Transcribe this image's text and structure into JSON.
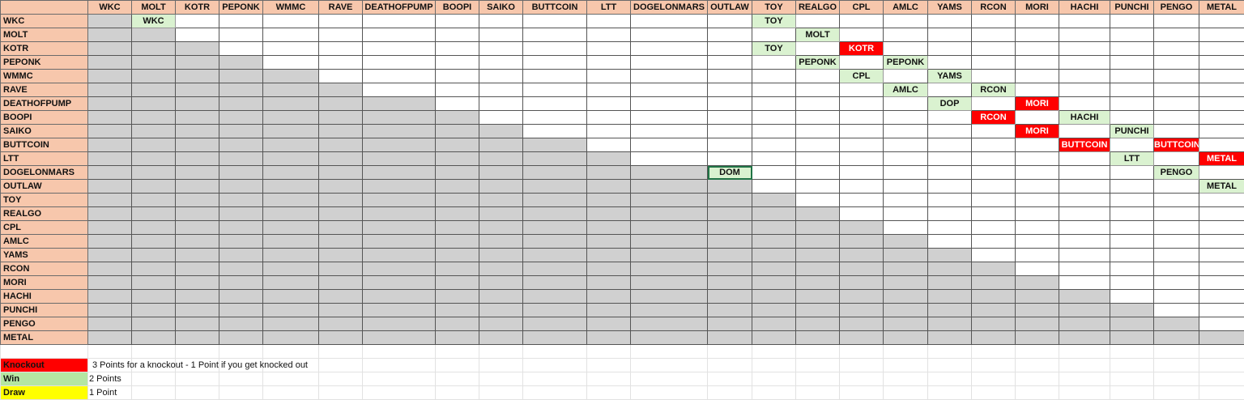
{
  "teams": [
    "WKC",
    "MOLT",
    "KOTR",
    "PEPONK",
    "WMMC",
    "RAVE",
    "DEATHOFPUMP",
    "BOOPI",
    "SAIKO",
    "BUTTCOIN",
    "LTT",
    "DOGELONMARS",
    "OUTLAW",
    "TOY",
    "REALGO",
    "CPL",
    "AMLC",
    "YAMS",
    "RCON",
    "MORI",
    "HACHI",
    "PUNCHI",
    "PENGO",
    "METAL"
  ],
  "results": [
    {
      "row": "WKC",
      "col": "MOLT",
      "text": "WKC",
      "type": "win"
    },
    {
      "row": "WKC",
      "col": "TOY",
      "text": "TOY",
      "type": "win"
    },
    {
      "row": "MOLT",
      "col": "REALGO",
      "text": "MOLT",
      "type": "win"
    },
    {
      "row": "KOTR",
      "col": "TOY",
      "text": "TOY",
      "type": "win"
    },
    {
      "row": "KOTR",
      "col": "CPL",
      "text": "KOTR",
      "type": "knockout"
    },
    {
      "row": "PEPONK",
      "col": "REALGO",
      "text": "PEPONK",
      "type": "win"
    },
    {
      "row": "PEPONK",
      "col": "AMLC",
      "text": "PEPONK",
      "type": "win"
    },
    {
      "row": "WMMC",
      "col": "CPL",
      "text": "CPL",
      "type": "win"
    },
    {
      "row": "WMMC",
      "col": "YAMS",
      "text": "YAMS",
      "type": "win"
    },
    {
      "row": "RAVE",
      "col": "AMLC",
      "text": "AMLC",
      "type": "win"
    },
    {
      "row": "RAVE",
      "col": "RCON",
      "text": "RCON",
      "type": "win"
    },
    {
      "row": "DEATHOFPUMP",
      "col": "YAMS",
      "text": "DOP",
      "type": "win"
    },
    {
      "row": "DEATHOFPUMP",
      "col": "MORI",
      "text": "MORI",
      "type": "knockout"
    },
    {
      "row": "BOOPI",
      "col": "RCON",
      "text": "RCON",
      "type": "knockout"
    },
    {
      "row": "BOOPI",
      "col": "HACHI",
      "text": "HACHI",
      "type": "win"
    },
    {
      "row": "SAIKO",
      "col": "MORI",
      "text": "MORI",
      "type": "knockout"
    },
    {
      "row": "SAIKO",
      "col": "PUNCHI",
      "text": "PUNCHI",
      "type": "win"
    },
    {
      "row": "BUTTCOIN",
      "col": "HACHI",
      "text": "BUTTCOIN",
      "type": "knockout"
    },
    {
      "row": "BUTTCOIN",
      "col": "PENGO",
      "text": "BUTTCOIN",
      "type": "knockout"
    },
    {
      "row": "LTT",
      "col": "PUNCHI",
      "text": "LTT",
      "type": "win"
    },
    {
      "row": "LTT",
      "col": "METAL",
      "text": "METAL",
      "type": "knockout"
    },
    {
      "row": "DOGELONMARS",
      "col": "OUTLAW",
      "text": "DOM",
      "type": "win",
      "selected": true
    },
    {
      "row": "DOGELONMARS",
      "col": "PENGO",
      "text": "PENGO",
      "type": "win"
    },
    {
      "row": "OUTLAW",
      "col": "METAL",
      "text": "METAL",
      "type": "win"
    }
  ],
  "legend": [
    {
      "label": "Knockout",
      "description": "3 Points for a knockout - 1 Point if you get knocked out",
      "color": "#ff0000"
    },
    {
      "label": "Win",
      "description": "2 Points",
      "color": "#b5e6a2"
    },
    {
      "label": "Draw",
      "description": "1 Point",
      "color": "#ffff00"
    }
  ],
  "colors": {
    "header": "#f7c7ac",
    "win_cell": "#daf2d0",
    "knockout_cell": "#ff0000",
    "unused_cell": "#d0d0d0"
  }
}
